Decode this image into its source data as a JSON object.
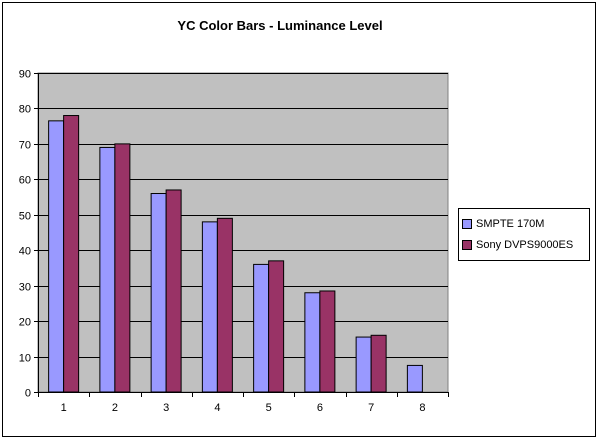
{
  "chart_data": {
    "type": "bar",
    "title": "YC Color Bars - Luminance Level",
    "xlabel": "",
    "ylabel": "",
    "categories": [
      "1",
      "2",
      "3",
      "4",
      "5",
      "6",
      "7",
      "8"
    ],
    "series": [
      {
        "name": "SMPTE 170M",
        "color": "#9999ff",
        "values": [
          76.5,
          69,
          56,
          48,
          36,
          28,
          15.5,
          7.5
        ]
      },
      {
        "name": "Sony DVPS9000ES",
        "color": "#993366",
        "values": [
          78,
          70,
          57,
          49,
          37,
          28.5,
          16,
          null
        ]
      }
    ],
    "ylim": [
      0,
      90
    ],
    "yticks": [
      "0",
      "10",
      "20",
      "30",
      "40",
      "50",
      "60",
      "70",
      "80",
      "90"
    ],
    "grid": true,
    "plot_background": "#c0c0c0",
    "legend_position": "right"
  }
}
